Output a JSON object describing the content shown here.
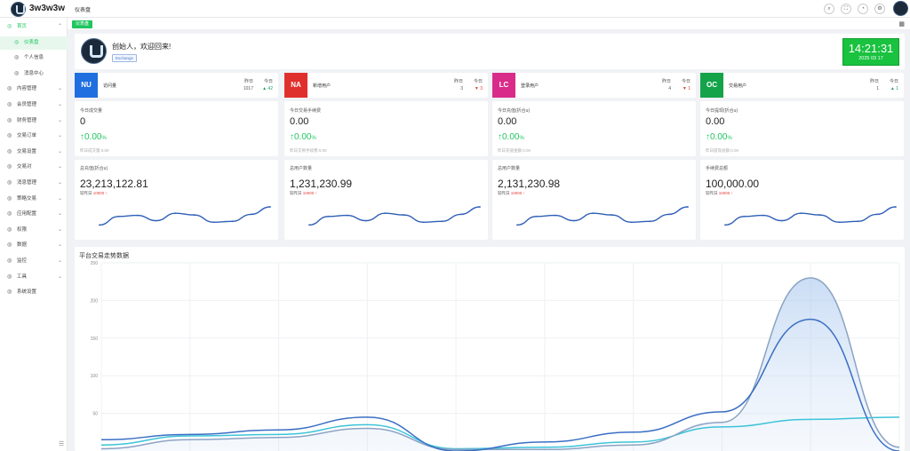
{
  "app": {
    "brand": "3w3w3w",
    "page_title": "仪表盘"
  },
  "tags": {
    "active": "仪表盘"
  },
  "sidebar": {
    "items": [
      {
        "label": "首页",
        "icon": "home-icon",
        "state": "open",
        "arrow": "⌃"
      },
      {
        "label": "仪表盘",
        "icon": "dashboard-icon",
        "state": "active",
        "sub": true
      },
      {
        "label": "个人信息",
        "icon": "user-icon",
        "sub": true
      },
      {
        "label": "消息中心",
        "icon": "message-icon",
        "sub": true
      },
      {
        "label": "内容管理",
        "icon": "list-icon",
        "arrow": "⌄"
      },
      {
        "label": "会员管理",
        "icon": "members-icon",
        "arrow": "⌄"
      },
      {
        "label": "财务管理",
        "icon": "finance-icon",
        "arrow": "⌄"
      },
      {
        "label": "交易订单",
        "icon": "order-icon",
        "arrow": "⌄"
      },
      {
        "label": "交易设置",
        "icon": "wrench-icon",
        "arrow": "⌄"
      },
      {
        "label": "交易对",
        "icon": "pair-icon",
        "arrow": "⌄"
      },
      {
        "label": "消息管理",
        "icon": "mail-icon",
        "arrow": "⌄"
      },
      {
        "label": "策略交易",
        "icon": "strategy-icon",
        "arrow": "⌄"
      },
      {
        "label": "应用配置",
        "icon": "config-icon",
        "arrow": "⌄"
      },
      {
        "label": "权限",
        "icon": "permission-icon",
        "arrow": "⌄"
      },
      {
        "label": "数据",
        "icon": "data-icon",
        "arrow": "⌄"
      },
      {
        "label": "监控",
        "icon": "monitor-icon",
        "arrow": "⌄"
      },
      {
        "label": "工具",
        "icon": "tools-icon",
        "arrow": "⌄"
      },
      {
        "label": "系统设置",
        "icon": "settings-icon"
      }
    ]
  },
  "welcome": {
    "text": "创始人，欢迎回来!",
    "tag": "Exchange"
  },
  "clock": {
    "time": "14:21:31",
    "date": "2025 03 17"
  },
  "stats": [
    {
      "badge": "NU",
      "color": "#1f6fe0",
      "label": "访问量",
      "yesterday_label": "昨日",
      "yesterday": "1017",
      "today_label": "今日",
      "today": "▲ 42",
      "today_color": "#20a060"
    },
    {
      "badge": "NA",
      "color": "#e0302e",
      "label": "新增用户",
      "yesterday_label": "昨日",
      "yesterday": "3",
      "today_label": "今日",
      "today": "▼ 3",
      "today_color": "#e0403a"
    },
    {
      "badge": "LC",
      "color": "#d92c8a",
      "label": "登录用户",
      "yesterday_label": "昨日",
      "yesterday": "4",
      "today_label": "今日",
      "today": "▼ 1",
      "today_color": "#e0403a"
    },
    {
      "badge": "OC",
      "color": "#15a34a",
      "label": "交易用户",
      "yesterday_label": "昨日",
      "yesterday": "1",
      "today_label": "今日",
      "today": "▲ 1",
      "today_color": "#20a060"
    }
  ],
  "metrics": [
    {
      "label": "今日成交量",
      "value": "0",
      "pct": "0.00",
      "unit": "%",
      "yest": "昨日成交量:0.00"
    },
    {
      "label": "今日交易手续费",
      "value": "0.00",
      "pct": "0.00",
      "unit": "%",
      "yest": "昨日交易手续费:0.00"
    },
    {
      "label": "今日充值(折合u)",
      "value": "0.00",
      "pct": "0.00",
      "unit": "%",
      "yest": "昨日充值金额:0.00"
    },
    {
      "label": "今日提现(折合u)",
      "value": "0.00",
      "pct": "0.00",
      "unit": "%",
      "yest": "昨日提现总额:0.00"
    }
  ],
  "totals": [
    {
      "label": "总充值(折合u)",
      "value": "23,213,122.81",
      "cmp": "较昨日",
      "delta": "10000 ↑"
    },
    {
      "label": "总用户数量",
      "value": "1,231,230.99",
      "cmp": "较昨日",
      "delta": "10000 ↑"
    },
    {
      "label": "总用户数量",
      "value": "2,131,230.98",
      "cmp": "较昨日",
      "delta": "10000 ↑"
    },
    {
      "label": "手续费总额",
      "value": "100,000.00",
      "cmp": "较昨日",
      "delta": "10000 ↑"
    }
  ],
  "sparkline": {
    "color": "#2f5fb8",
    "values": [
      0.15,
      0.55,
      0.6,
      0.35,
      0.7,
      0.62,
      0.28,
      0.32,
      0.65,
      1.0
    ]
  },
  "chart_data": {
    "type": "area",
    "title": "平台交易走势数据",
    "ylim": [
      0,
      250
    ],
    "yticks": [
      50,
      100,
      150,
      200,
      250
    ],
    "x": [
      0,
      1,
      2,
      3,
      4,
      5,
      6,
      7,
      8,
      9
    ],
    "series": [
      {
        "color": "#3cc3d8",
        "values": [
          8,
          20,
          22,
          35,
          3,
          5,
          12,
          32,
          42,
          45
        ]
      },
      {
        "color": "#8ca3c4",
        "values": [
          3,
          15,
          18,
          30,
          2,
          2,
          8,
          38,
          230,
          5
        ]
      },
      {
        "color": "#3a6fc4",
        "values": [
          15,
          22,
          28,
          45,
          0,
          12,
          25,
          52,
          175,
          0
        ]
      }
    ]
  }
}
